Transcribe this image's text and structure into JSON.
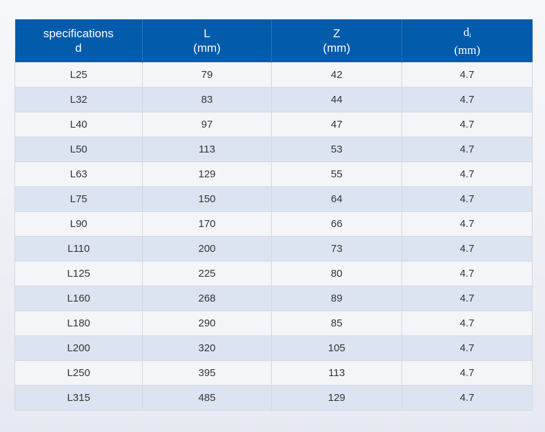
{
  "table": {
    "header": {
      "col1": {
        "line1": "specifications",
        "line2": "d"
      },
      "col2": {
        "line1": "L",
        "line2": "(mm)"
      },
      "col3": {
        "line1": "Z",
        "line2": "(mm)"
      },
      "col4": {
        "line1": "d",
        "sub": "i",
        "line2": "(mm)"
      }
    },
    "rows": [
      [
        "L25",
        "79",
        "42",
        "4.7"
      ],
      [
        "L32",
        "83",
        "44",
        "4.7"
      ],
      [
        "L40",
        "97",
        "47",
        "4.7"
      ],
      [
        "L50",
        "113",
        "53",
        "4.7"
      ],
      [
        "L63",
        "129",
        "55",
        "4.7"
      ],
      [
        "L75",
        "150",
        "64",
        "4.7"
      ],
      [
        "L90",
        "170",
        "66",
        "4.7"
      ],
      [
        "L110",
        "200",
        "73",
        "4.7"
      ],
      [
        "L125",
        "225",
        "80",
        "4.7"
      ],
      [
        "L160",
        "268",
        "89",
        "4.7"
      ],
      [
        "L180",
        "290",
        "85",
        "4.7"
      ],
      [
        "L200",
        "320",
        "105",
        "4.7"
      ],
      [
        "L250",
        "395",
        "113",
        "4.7"
      ],
      [
        "L315",
        "485",
        "129",
        "4.7"
      ]
    ]
  },
  "colors": {
    "header_bg": "#035bab",
    "row_light": "#f4f5f9",
    "row_shaded": "#dce4f1"
  }
}
